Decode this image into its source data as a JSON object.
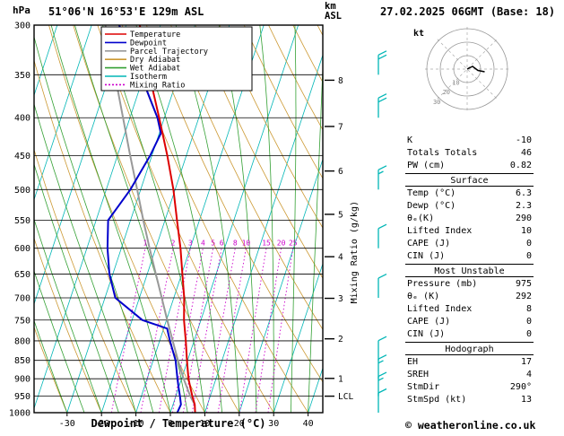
{
  "header": {
    "pressure_unit": "hPa",
    "station": "51°06'N 16°53'E 129m ASL",
    "altitude_unit": "km",
    "altitude_unit2": "ASL",
    "datetime": "27.02.2025 06GMT (Base: 18)",
    "hodograph_unit": "kt"
  },
  "legend": [
    {
      "label": "Temperature",
      "color": "#dd0000",
      "dash": ""
    },
    {
      "label": "Dewpoint",
      "color": "#0000cc",
      "dash": ""
    },
    {
      "label": "Parcel Trajectory",
      "color": "#999999",
      "dash": ""
    },
    {
      "label": "Dry Adiabat",
      "color": "#cc9933",
      "dash": ""
    },
    {
      "label": "Wet Adiabat",
      "color": "#33a033",
      "dash": ""
    },
    {
      "label": "Isotherm",
      "color": "#00b6b6",
      "dash": ""
    },
    {
      "label": "Mixing Ratio",
      "color": "#cc00cc",
      "dash": "2,2"
    }
  ],
  "axes": {
    "pressure_ticks": [
      300,
      350,
      400,
      450,
      500,
      550,
      600,
      650,
      700,
      750,
      800,
      850,
      900,
      950,
      1000
    ],
    "temp_ticks": [
      -30,
      -20,
      -10,
      0,
      10,
      20,
      30,
      40
    ],
    "xlabel": "Dewpoint / Temperature (°C)",
    "mixing_ratio_label": "Mixing Ratio (g/kg)",
    "mixing_ratio_values": [
      1,
      2,
      3,
      4,
      5,
      6,
      8,
      10,
      15,
      20,
      25
    ],
    "km_ticks": [
      [
        1,
        899
      ],
      [
        2,
        795
      ],
      [
        3,
        701
      ],
      [
        4,
        616
      ],
      [
        5,
        540
      ],
      [
        6,
        472
      ],
      [
        7,
        411
      ],
      [
        8,
        356
      ]
    ],
    "lcl_label": "LCL",
    "lcl_pressure": 950
  },
  "chart_data": {
    "type": "line",
    "subtype": "skew-t-log-p-sounding",
    "title": "51°06'N 16°53'E 129m ASL — 27.02.2025 06GMT (Base: 18)",
    "xlabel": "Dewpoint / Temperature (°C)",
    "ylabel": "hPa",
    "pressure_range": [
      300,
      1000
    ],
    "surface_temp_axis_range": [
      -40,
      44
    ],
    "isotherm_step_c": 10,
    "dry_adiabat_step_c": 10,
    "wet_adiabat_step_c": 5,
    "series": [
      {
        "name": "Temperature",
        "color": "#dd0000",
        "points": [
          [
            1000,
            7.2
          ],
          [
            975,
            6.3
          ],
          [
            950,
            4.8
          ],
          [
            925,
            3.4
          ],
          [
            900,
            2.0
          ],
          [
            850,
            -0.2
          ],
          [
            800,
            -2.4
          ],
          [
            750,
            -4.9
          ],
          [
            700,
            -7.0
          ],
          [
            650,
            -9.8
          ],
          [
            600,
            -12.8
          ],
          [
            550,
            -16.5
          ],
          [
            500,
            -20.5
          ],
          [
            450,
            -25.5
          ],
          [
            400,
            -31.5
          ],
          [
            350,
            -38.5
          ],
          [
            300,
            -46.0
          ]
        ]
      },
      {
        "name": "Dewpoint",
        "color": "#0000cc",
        "points": [
          [
            1000,
            2.0
          ],
          [
            975,
            2.3
          ],
          [
            950,
            1.2
          ],
          [
            925,
            0.0
          ],
          [
            900,
            -1.2
          ],
          [
            850,
            -3.5
          ],
          [
            800,
            -7.0
          ],
          [
            770,
            -9.0
          ],
          [
            750,
            -17.0
          ],
          [
            700,
            -27.0
          ],
          [
            650,
            -31.0
          ],
          [
            600,
            -34.0
          ],
          [
            550,
            -36.5
          ],
          [
            500,
            -33.0
          ],
          [
            450,
            -30.5
          ],
          [
            420,
            -29.5
          ],
          [
            400,
            -32.0
          ],
          [
            350,
            -41.0
          ],
          [
            300,
            -52.0
          ]
        ]
      },
      {
        "name": "Parcel Trajectory",
        "color": "#999999",
        "points": [
          [
            975,
            6.3
          ],
          [
            950,
            4.2
          ],
          [
            900,
            0.6
          ],
          [
            850,
            -2.8
          ],
          [
            800,
            -6.2
          ],
          [
            750,
            -9.8
          ],
          [
            700,
            -13.5
          ],
          [
            650,
            -17.5
          ],
          [
            600,
            -21.8
          ],
          [
            550,
            -26.3
          ],
          [
            500,
            -31.0
          ],
          [
            450,
            -36.3
          ],
          [
            400,
            -42.0
          ],
          [
            350,
            -48.5
          ],
          [
            300,
            -56.0
          ]
        ]
      }
    ],
    "wind_barbs": {
      "color": "#00b6b6",
      "levels": [
        {
          "p": 350,
          "kt": 20
        },
        {
          "p": 400,
          "kt": 20
        },
        {
          "p": 500,
          "kt": 15
        },
        {
          "p": 600,
          "kt": 10
        },
        {
          "p": 700,
          "kt": 10
        },
        {
          "p": 850,
          "kt": 10
        },
        {
          "p": 900,
          "kt": 15
        },
        {
          "p": 950,
          "kt": 15
        },
        {
          "p": 1000,
          "kt": 10
        }
      ]
    },
    "hodograph": {
      "rings_kt": [
        10,
        20,
        30
      ],
      "trace_uv_kt": [
        [
          0,
          0
        ],
        [
          4,
          2
        ],
        [
          8,
          -1
        ],
        [
          13,
          -2
        ]
      ]
    }
  },
  "stats": {
    "sections": [
      {
        "header": null,
        "rows": [
          [
            "K",
            "-10"
          ],
          [
            "Totals Totals",
            "46"
          ],
          [
            "PW (cm)",
            "0.82"
          ]
        ]
      },
      {
        "header": "Surface",
        "rows": [
          [
            "Temp (°C)",
            "6.3"
          ],
          [
            "Dewp (°C)",
            "2.3"
          ],
          [
            "θₑ(K)",
            "290"
          ],
          [
            "Lifted Index",
            "10"
          ],
          [
            "CAPE (J)",
            "0"
          ],
          [
            "CIN (J)",
            "0"
          ]
        ]
      },
      {
        "header": "Most Unstable",
        "rows": [
          [
            "Pressure (mb)",
            "975"
          ],
          [
            "θₑ (K)",
            "292"
          ],
          [
            "Lifted Index",
            "8"
          ],
          [
            "CAPE (J)",
            "0"
          ],
          [
            "CIN (J)",
            "0"
          ]
        ]
      },
      {
        "header": "Hodograph",
        "rows": [
          [
            "EH",
            "17"
          ],
          [
            "SREH",
            "4"
          ],
          [
            "StmDir",
            "290°"
          ],
          [
            "StmSpd (kt)",
            "13"
          ]
        ]
      }
    ]
  },
  "footer": {
    "copyright": "© weatheronline.co.uk"
  }
}
